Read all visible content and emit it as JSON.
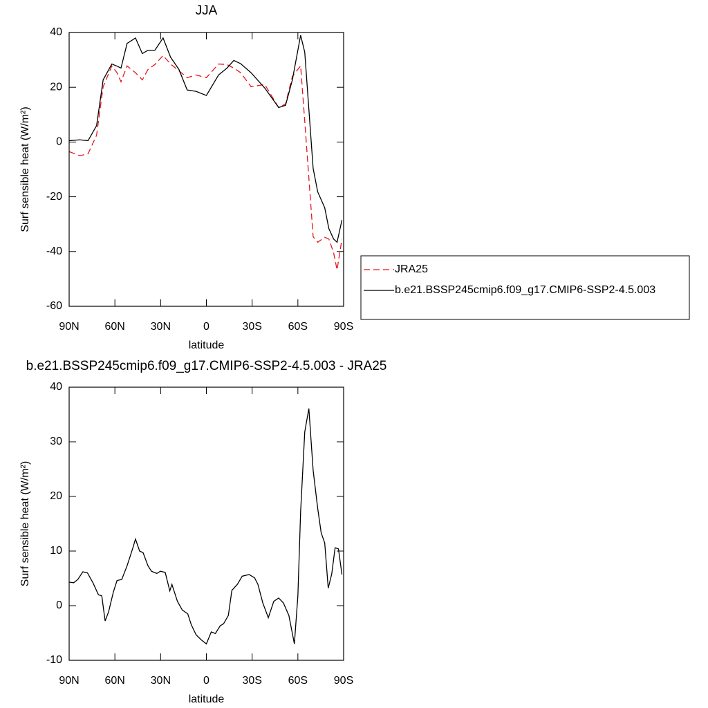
{
  "chart_data": [
    {
      "type": "line",
      "title": "JJA",
      "xlabel": "latitude",
      "ylabel": "Surf sensible heat (W/m²)",
      "x": [
        90,
        83,
        77.6,
        72,
        67.7,
        62,
        58.6,
        56,
        52,
        46.5,
        42,
        38.3,
        33.8,
        28.4,
        23.5,
        18,
        12.6,
        6.8,
        0,
        -8,
        -13.5,
        -18,
        -22.5,
        -29.3,
        -38.3,
        -47.4,
        -51.9,
        -56.4,
        -61.8,
        -64.5,
        -70,
        -73,
        -77.6,
        -80.3,
        -83.4,
        -85.7,
        -88.9
      ],
      "series": [
        {
          "name": "JRA25",
          "color": "#e8141a",
          "dashed": true,
          "values": [
            -3.5,
            -5,
            -4.3,
            2.5,
            20.2,
            27.8,
            25.3,
            22,
            27.8,
            25.3,
            22.7,
            26.5,
            28.3,
            31.6,
            28.5,
            26,
            23.5,
            24.5,
            23.5,
            28.5,
            28.3,
            27,
            25.3,
            20.2,
            21,
            12.6,
            13.9,
            24,
            27.8,
            7.6,
            -34.6,
            -36.6,
            -34.8,
            -35.4,
            -40.4,
            -46.7,
            -35.4
          ]
        },
        {
          "name": "b.e21.BSSP245cmip6.f09_g17.CMIP6-SSP2-4.5.003",
          "color": "#000000",
          "dashed": false,
          "values": [
            0.5,
            0.8,
            0.5,
            6,
            22.7,
            28.5,
            27.7,
            27,
            36,
            38,
            32.3,
            33.5,
            33.5,
            38,
            31,
            26.5,
            19,
            18.5,
            17,
            24.5,
            27,
            29.8,
            28.6,
            25.3,
            19.7,
            12.6,
            13.4,
            22.7,
            39,
            32.8,
            -9.6,
            -18.2,
            -24,
            -31.6,
            -35.4,
            -36.6,
            -28.5
          ]
        }
      ],
      "xlim": [
        90,
        -90
      ],
      "xticks": [
        {
          "value": 90,
          "label": "90N"
        },
        {
          "value": 60,
          "label": "60N"
        },
        {
          "value": 30,
          "label": "30N"
        },
        0,
        {
          "value": -30,
          "label": "30S"
        },
        {
          "value": -60,
          "label": "60S"
        },
        {
          "value": -90,
          "label": "90S"
        }
      ],
      "ylim": [
        -60,
        40
      ],
      "yticks": [
        -60,
        -40,
        -20,
        0,
        20,
        40
      ],
      "legend": "right"
    },
    {
      "type": "line",
      "title": "b.e21.BSSP245cmip6.f09_g17.CMIP6-SSP2-4.5.003 - JRA25",
      "xlabel": "latitude",
      "ylabel": "Surf sensible heat (W/m²)",
      "x": [
        90,
        87,
        84.3,
        81,
        78,
        74.4,
        70.8,
        68.6,
        66.4,
        64.1,
        61,
        58.6,
        55.5,
        52,
        48.3,
        46.5,
        43.8,
        41.5,
        38.3,
        36,
        32.5,
        30.2,
        27,
        24,
        22.6,
        19,
        15.8,
        12.2,
        9.9,
        6.8,
        3.6,
        0,
        -3.2,
        -5.9,
        -9,
        -11.3,
        -14.4,
        -16.7,
        -20.3,
        -23.5,
        -28,
        -31.6,
        -33.8,
        -37,
        -40.6,
        -44.2,
        -47.4,
        -50.5,
        -54.1,
        -57.7,
        -60,
        -61.8,
        -64.5,
        -67.2,
        -70,
        -73,
        -75.3,
        -77.6,
        -79.9,
        -82.2,
        -84.4,
        -86.6,
        -88.9
      ],
      "series": [
        {
          "color": "#000000",
          "dashed": false,
          "values": [
            4.3,
            4.2,
            4.8,
            6.2,
            6.0,
            4.2,
            2.0,
            1.8,
            -2.8,
            -1.1,
            2.5,
            4.6,
            4.8,
            7.3,
            10.5,
            12.2,
            10,
            9.7,
            7.3,
            6.3,
            5.9,
            6.3,
            6.1,
            2.7,
            3.9,
            0.8,
            -0.8,
            -1.5,
            -3.5,
            -5.3,
            -6.2,
            -7,
            -4.8,
            -5.1,
            -3.7,
            -3.3,
            -1.8,
            2.8,
            3.9,
            5.4,
            5.7,
            5.1,
            3.9,
            0.5,
            -2.2,
            0.8,
            1.4,
            0.5,
            -1.8,
            -7,
            1.8,
            17.2,
            31.8,
            36.1,
            24.8,
            17.8,
            13.3,
            11.5,
            3.2,
            5.8,
            10.6,
            10.4,
            5.7
          ]
        }
      ],
      "xlim": [
        90,
        -90
      ],
      "xticks": [
        {
          "value": 90,
          "label": "90N"
        },
        {
          "value": 60,
          "label": "60N"
        },
        {
          "value": 30,
          "label": "30N"
        },
        0,
        {
          "value": -30,
          "label": "30S"
        },
        {
          "value": -60,
          "label": "60S"
        },
        {
          "value": -90,
          "label": "90S"
        }
      ],
      "ylim": [
        -10,
        40
      ],
      "yticks": [
        -10,
        0,
        10,
        20,
        30,
        40
      ]
    }
  ]
}
